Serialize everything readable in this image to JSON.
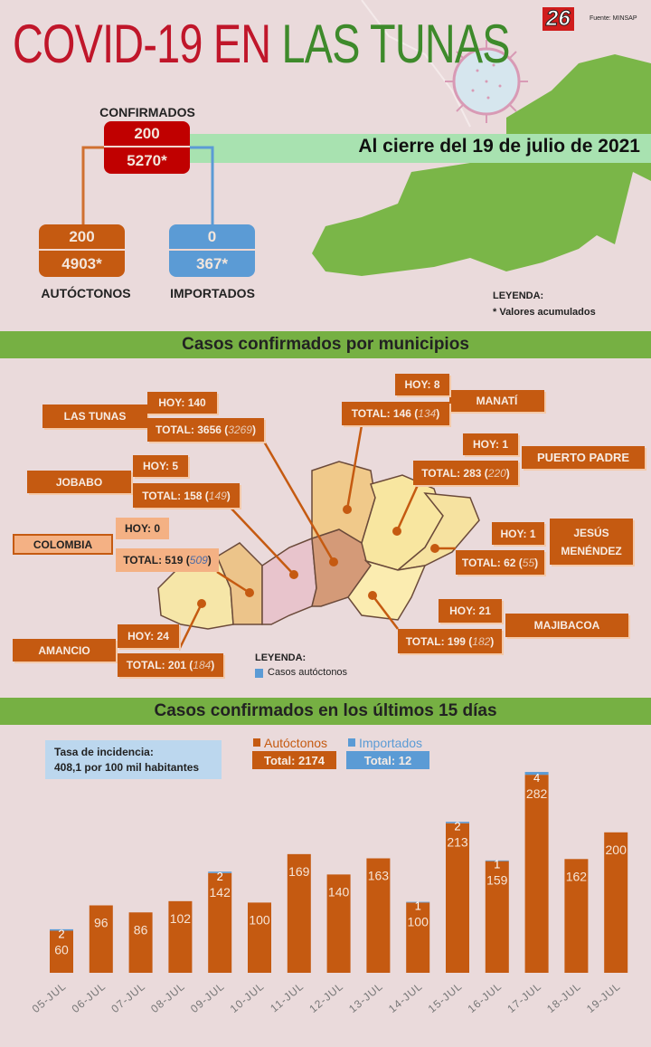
{
  "header": {
    "title_part1": "COVID-19 EN",
    "title_part2": "LAS TUNAS",
    "logo": "26",
    "source": "Fuente: MINSAP",
    "date_banner": "Al cierre del 19 de julio de 2021"
  },
  "summary": {
    "confirmados": {
      "label": "CONFIRMADOS",
      "today": "200",
      "cumulative": "5270*"
    },
    "autoctonos": {
      "label": "AUTÓCTONOS",
      "today": "200",
      "cumulative": "4903*"
    },
    "importados": {
      "label": "IMPORTADOS",
      "today": "0",
      "cumulative": "367*"
    },
    "legend_title": "LEYENDA:",
    "legend_note": "* Valores acumulados"
  },
  "municipios": {
    "heading": "Casos confirmados por municipios",
    "items": [
      {
        "name": "LAS TUNAS",
        "hoy": "HOY: 140",
        "total": "TOTAL: 3656",
        "autoctonos": "3269"
      },
      {
        "name": "MANATÍ",
        "hoy": "HOY: 8",
        "total": "TOTAL: 146",
        "autoctonos": "134"
      },
      {
        "name": "JOBABO",
        "hoy": "HOY: 5",
        "total": "TOTAL: 158",
        "autoctonos": "149"
      },
      {
        "name": "PUERTO PADRE",
        "hoy": "HOY: 1",
        "total": "TOTAL: 283",
        "autoctonos": "220"
      },
      {
        "name": "COLOMBIA",
        "hoy": "HOY: 0",
        "total": "TOTAL: 519",
        "autoctonos": "509"
      },
      {
        "name": "JESÚS MENÉNDEZ",
        "hoy": "HOY: 1",
        "total": "TOTAL: 62",
        "autoctonos": "55"
      },
      {
        "name": "MAJIBACOA",
        "hoy": "HOY: 21",
        "total": "TOTAL: 199",
        "autoctonos": "182"
      },
      {
        "name": "AMANCIO",
        "hoy": "HOY: 24",
        "total": "TOTAL: 201",
        "autoctonos": "184"
      }
    ],
    "legend_title": "LEYENDA:",
    "legend_item": "Casos autóctonos"
  },
  "chart_section": {
    "heading": "Casos confirmados en los últimos 15 días",
    "incidence_line1": "Tasa de incidencia:",
    "incidence_line2": "408,1 por 100 mil  habitantes",
    "legend_auto": "Autóctonos",
    "legend_imp": "Importados",
    "total_auto": "Total: 2174",
    "total_imp": "Total: 12"
  },
  "colors": {
    "autoctonos": "#c55a11",
    "importados": "#5b9bd5",
    "confirmados": "#c00000",
    "band": "#76b043"
  },
  "chart_data": {
    "type": "bar",
    "stacked": true,
    "title": "Casos confirmados en los últimos 15 días",
    "categories": [
      "05-JUL",
      "06-JUL",
      "07-JUL",
      "08-JUL",
      "09-JUL",
      "10-JUL",
      "11-JUL",
      "12-JUL",
      "13-JUL",
      "14-JUL",
      "15-JUL",
      "16-JUL",
      "17-JUL",
      "18-JUL",
      "19-JUL"
    ],
    "series": [
      {
        "name": "Autóctonos",
        "values": [
          60,
          96,
          86,
          102,
          142,
          100,
          169,
          140,
          163,
          100,
          213,
          159,
          282,
          162,
          200
        ]
      },
      {
        "name": "Importados",
        "values": [
          2,
          0,
          0,
          0,
          2,
          0,
          0,
          0,
          0,
          1,
          2,
          1,
          4,
          0,
          0
        ]
      }
    ],
    "ylim": [
      0,
      290
    ],
    "grid": false,
    "legend": "top-center"
  }
}
